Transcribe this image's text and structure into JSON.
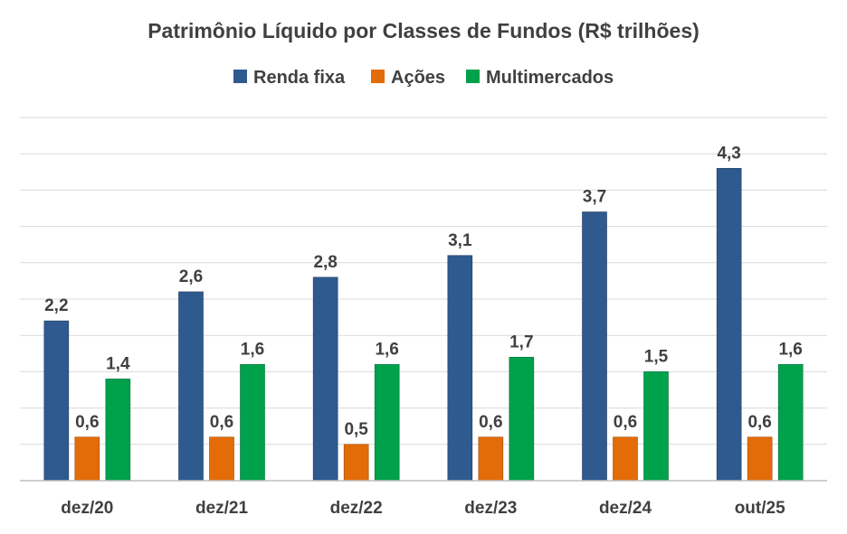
{
  "chart_data": {
    "type": "bar",
    "title": "Patrimônio Líquido por Classes de Fundos (R$ trilhões)",
    "categories": [
      "dez/20",
      "dez/21",
      "dez/22",
      "dez/23",
      "dez/24",
      "out/25"
    ],
    "series": [
      {
        "name": "Renda fixa",
        "color": "#2f5a8f",
        "values": [
          2.2,
          2.6,
          2.8,
          3.1,
          3.7,
          4.3
        ],
        "labels": [
          "2,2",
          "2,6",
          "2,8",
          "3,1",
          "3,7",
          "4,3"
        ]
      },
      {
        "name": "Ações",
        "color": "#e36c09",
        "values": [
          0.6,
          0.6,
          0.5,
          0.6,
          0.6,
          0.6
        ],
        "labels": [
          "0,6",
          "0,6",
          "0,5",
          "0,6",
          "0,6",
          "0,6"
        ]
      },
      {
        "name": "Multimercados",
        "color": "#00a14b",
        "values": [
          1.4,
          1.6,
          1.6,
          1.7,
          1.5,
          1.6
        ],
        "labels": [
          "1,4",
          "1,6",
          "1,6",
          "1,7",
          "1,5",
          "1,6"
        ]
      }
    ],
    "ylim": [
      0,
      5
    ],
    "grid": true,
    "legend": "top-center",
    "xlabel": "",
    "ylabel": ""
  }
}
